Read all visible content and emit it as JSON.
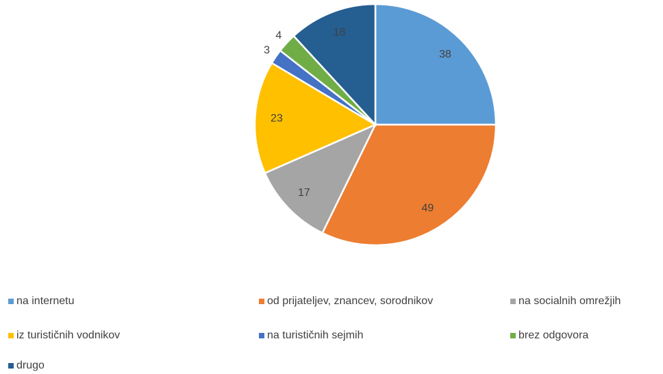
{
  "chart_data": {
    "type": "pie",
    "categories": [
      "na internetu",
      "od prijateljev, znancev, sorodnikov",
      "na socialnih omrežjih",
      "iz turističnih vodnikov",
      "na turističnih sejmih",
      "brez odgovora",
      "drugo"
    ],
    "values": [
      38,
      49,
      17,
      23,
      3,
      4,
      18
    ],
    "colors": [
      "#5b9bd5",
      "#ed7d31",
      "#a5a5a5",
      "#ffc000",
      "#4472c4",
      "#70ad47",
      "#255e91"
    ],
    "legend": "bottom"
  }
}
